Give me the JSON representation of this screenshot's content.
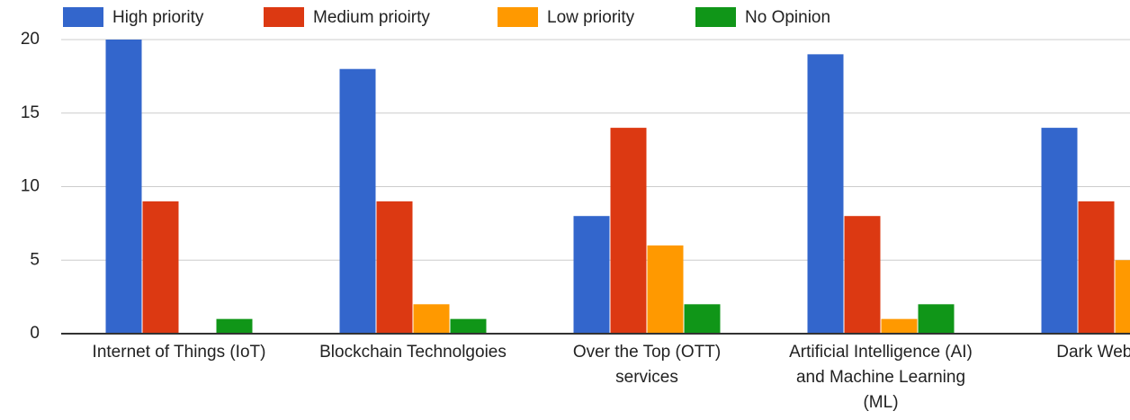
{
  "chart_data": {
    "type": "bar",
    "categories": [
      "Internet of Things (IoT)",
      "Blockchain Technolgoies",
      "Over the Top (OTT) services",
      "Artificial Intelligence (AI) and Machine Learning (ML)",
      "Dark Web Rout"
    ],
    "series": [
      {
        "name": "High priority",
        "color": "#3366cc",
        "values": [
          20,
          18,
          8,
          19,
          14
        ]
      },
      {
        "name": "Medium prioirty",
        "color": "#dc3912",
        "values": [
          9,
          9,
          14,
          8,
          9
        ]
      },
      {
        "name": "Low priority",
        "color": "#ff9900",
        "values": [
          0,
          2,
          6,
          1,
          5
        ]
      },
      {
        "name": "No Opinion",
        "color": "#109618",
        "values": [
          1,
          1,
          2,
          2,
          null
        ]
      }
    ],
    "ylim": [
      0,
      20
    ],
    "yticks": [
      0,
      5,
      10,
      15,
      20
    ],
    "grid": true,
    "legend": "top"
  }
}
